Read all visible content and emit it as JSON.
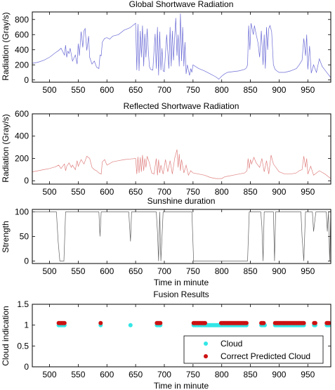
{
  "chart_data": [
    {
      "type": "line",
      "title": "Global Shortwave Radiation",
      "xlabel": "",
      "ylabel": "Radiation (Gray/s)",
      "xlim": [
        470,
        990
      ],
      "ylim": [
        -30,
        900
      ],
      "xticks": [
        500,
        550,
        600,
        650,
        700,
        750,
        800,
        850,
        900,
        950
      ],
      "yticks": [
        0,
        200,
        400,
        600,
        800
      ],
      "color": "#6b6bd6",
      "series": [
        {
          "x": [
            470,
            480,
            490,
            500,
            510,
            516,
            520,
            526,
            528,
            530,
            532,
            534,
            536,
            540,
            545,
            548,
            550,
            552,
            555,
            558,
            560,
            562,
            565,
            568,
            570,
            574,
            578,
            582,
            586,
            588,
            590,
            592,
            596,
            600,
            605,
            610,
            620,
            630,
            640,
            645,
            650,
            652,
            654,
            656,
            658,
            660,
            662,
            664,
            666,
            668,
            670,
            672,
            674,
            676,
            680,
            684,
            686,
            688,
            690,
            692,
            694,
            696,
            698,
            700,
            704,
            708,
            710,
            712,
            714,
            716,
            718,
            720,
            722,
            724,
            726,
            728,
            730,
            732,
            734,
            736,
            738,
            740,
            742,
            744,
            746,
            748,
            750,
            760,
            770,
            780,
            790,
            795,
            800,
            805,
            810,
            820,
            830,
            840,
            843,
            845,
            847,
            849,
            851,
            853,
            855,
            857,
            860,
            863,
            866,
            869,
            872,
            874,
            876,
            878,
            880,
            882,
            884,
            887,
            890,
            893,
            896,
            900,
            910,
            920,
            930,
            935,
            940,
            943,
            946,
            948,
            950,
            953,
            956,
            960,
            965,
            970,
            975,
            980,
            985,
            990
          ],
          "y": [
            220,
            235,
            260,
            300,
            360,
            390,
            420,
            330,
            460,
            300,
            380,
            350,
            420,
            250,
            330,
            210,
            480,
            320,
            640,
            430,
            650,
            680,
            390,
            580,
            300,
            210,
            250,
            170,
            150,
            330,
            320,
            500,
            550,
            560,
            540,
            580,
            600,
            660,
            690,
            720,
            750,
            130,
            740,
            120,
            650,
            300,
            720,
            180,
            610,
            300,
            680,
            400,
            180,
            140,
            130,
            610,
            150,
            700,
            60,
            640,
            130,
            420,
            120,
            110,
            600,
            150,
            700,
            180,
            650,
            260,
            560,
            820,
            320,
            600,
            180,
            880,
            250,
            700,
            180,
            500,
            80,
            200,
            130,
            60,
            150,
            100,
            200,
            150,
            120,
            80,
            40,
            10,
            50,
            80,
            100,
            110,
            120,
            140,
            160,
            200,
            720,
            400,
            750,
            680,
            600,
            720,
            600,
            500,
            300,
            650,
            200,
            600,
            150,
            700,
            400,
            680,
            720,
            640,
            200,
            140,
            120,
            100,
            100,
            120,
            150,
            200,
            260,
            550,
            320,
            600,
            140,
            450,
            90,
            200,
            100,
            280,
            180,
            130,
            80,
            30
          ]
        }
      ]
    },
    {
      "type": "line",
      "title": "Reflected Shortwave Radiation",
      "xlabel": "",
      "ylabel": "Radiation (Gray/s)",
      "xlim": [
        470,
        990
      ],
      "ylim": [
        -30,
        600
      ],
      "xticks": [
        500,
        550,
        600,
        650,
        700,
        750,
        800,
        850,
        900,
        950
      ],
      "yticks": [
        0,
        200,
        400,
        600
      ],
      "color": "#e08080",
      "series": [
        {
          "x": [
            470,
            480,
            490,
            500,
            510,
            516,
            520,
            526,
            528,
            530,
            534,
            538,
            540,
            545,
            548,
            550,
            555,
            560,
            565,
            570,
            574,
            578,
            582,
            586,
            590,
            592,
            596,
            600,
            610,
            620,
            630,
            640,
            650,
            652,
            654,
            656,
            658,
            660,
            662,
            664,
            666,
            668,
            670,
            674,
            678,
            682,
            686,
            688,
            690,
            692,
            694,
            698,
            702,
            706,
            710,
            714,
            718,
            722,
            724,
            726,
            728,
            730,
            734,
            738,
            742,
            746,
            750,
            760,
            770,
            780,
            790,
            800,
            805,
            810,
            820,
            830,
            840,
            844,
            846,
            848,
            850,
            852,
            856,
            860,
            866,
            870,
            874,
            878,
            882,
            886,
            890,
            900,
            910,
            920,
            930,
            935,
            940,
            943,
            946,
            948,
            950,
            955,
            960,
            970,
            980,
            990
          ],
          "y": [
            80,
            90,
            100,
            110,
            125,
            140,
            110,
            150,
            90,
            130,
            160,
            120,
            140,
            100,
            180,
            130,
            190,
            150,
            220,
            200,
            120,
            100,
            90,
            70,
            60,
            170,
            190,
            140,
            170,
            180,
            190,
            195,
            200,
            60,
            215,
            70,
            210,
            80,
            230,
            90,
            200,
            120,
            220,
            160,
            70,
            60,
            200,
            50,
            190,
            70,
            140,
            60,
            190,
            80,
            180,
            60,
            200,
            280,
            120,
            240,
            90,
            190,
            70,
            140,
            50,
            90,
            70,
            60,
            50,
            30,
            20,
            20,
            35,
            40,
            50,
            60,
            70,
            90,
            200,
            110,
            190,
            150,
            210,
            160,
            120,
            200,
            80,
            180,
            60,
            230,
            150,
            80,
            60,
            60,
            70,
            90,
            100,
            220,
            120,
            200,
            60,
            130,
            50,
            90,
            60,
            20
          ]
        }
      ]
    },
    {
      "type": "line",
      "title": "Sunshine duration",
      "xlabel": "Time in minute",
      "ylabel": "Strength",
      "xlim": [
        470,
        990
      ],
      "ylim": [
        -5,
        105
      ],
      "xticks": [
        500,
        550,
        600,
        650,
        700,
        750,
        800,
        850,
        900,
        950
      ],
      "yticks": [
        0,
        50,
        100
      ],
      "color": "#606060",
      "series": [
        {
          "x": [
            470,
            512,
            515,
            518,
            525,
            528,
            586,
            588,
            590,
            592,
            638,
            641,
            643,
            645,
            686,
            688,
            690,
            692,
            694,
            698,
            748,
            751,
            752,
            845,
            848,
            868,
            870,
            872,
            874,
            877,
            890,
            892,
            894,
            938,
            940,
            943,
            946,
            958,
            960,
            962,
            964,
            982,
            984,
            986,
            988,
            990
          ],
          "y": [
            100,
            100,
            40,
            0,
            0,
            100,
            100,
            50,
            100,
            100,
            100,
            40,
            100,
            100,
            100,
            60,
            0,
            100,
            0,
            100,
            100,
            0,
            0,
            0,
            100,
            100,
            70,
            0,
            100,
            100,
            100,
            0,
            100,
            100,
            50,
            0,
            100,
            100,
            60,
            80,
            100,
            100,
            60,
            100,
            0,
            100
          ]
        }
      ]
    },
    {
      "type": "scatter",
      "title": "Fusion Results",
      "xlabel": "Time in minute",
      "ylabel": "Cloud indication",
      "xlim": [
        470,
        990
      ],
      "ylim": [
        0,
        1.5
      ],
      "xticks": [
        500,
        550,
        600,
        650,
        700,
        750,
        800,
        850,
        900,
        950
      ],
      "yticks": [
        0,
        0.5,
        1,
        1.5
      ],
      "legend": "bottom-right",
      "series": [
        {
          "name": "Cloud",
          "color": "#33e6e6",
          "y": 1.0,
          "x": [
            516,
            518,
            520,
            522,
            524,
            526,
            589,
            641,
            687,
            689,
            691,
            693,
            751,
            753,
            755,
            757,
            759,
            761,
            763,
            765,
            767,
            769,
            771,
            773,
            775,
            777,
            779,
            781,
            783,
            785,
            787,
            789,
            791,
            793,
            795,
            797,
            799,
            801,
            803,
            805,
            807,
            809,
            811,
            813,
            815,
            817,
            819,
            821,
            823,
            825,
            827,
            829,
            831,
            833,
            835,
            837,
            839,
            841,
            843,
            869,
            871,
            873,
            875,
            893,
            895,
            897,
            899,
            901,
            903,
            905,
            907,
            909,
            911,
            913,
            915,
            917,
            919,
            921,
            923,
            925,
            927,
            929,
            931,
            933,
            935,
            937,
            939,
            941,
            943,
            961,
            963,
            983,
            985,
            987
          ]
        },
        {
          "name": "Correct Predicted Cloud",
          "color": "#cc1111",
          "y": 1.05,
          "x": [
            516,
            518,
            520,
            522,
            524,
            526,
            589,
            687,
            689,
            691,
            693,
            751,
            753,
            755,
            757,
            759,
            761,
            763,
            765,
            767,
            769,
            771,
            799,
            801,
            803,
            805,
            807,
            809,
            811,
            813,
            815,
            817,
            819,
            821,
            823,
            825,
            827,
            829,
            831,
            833,
            835,
            837,
            839,
            841,
            843,
            869,
            871,
            873,
            893,
            895,
            897,
            899,
            901,
            903,
            905,
            907,
            909,
            911,
            913,
            915,
            917,
            919,
            921,
            923,
            925,
            927,
            929,
            931,
            933,
            935,
            937,
            939,
            941,
            943,
            961,
            963,
            983,
            985,
            987
          ]
        }
      ]
    }
  ]
}
